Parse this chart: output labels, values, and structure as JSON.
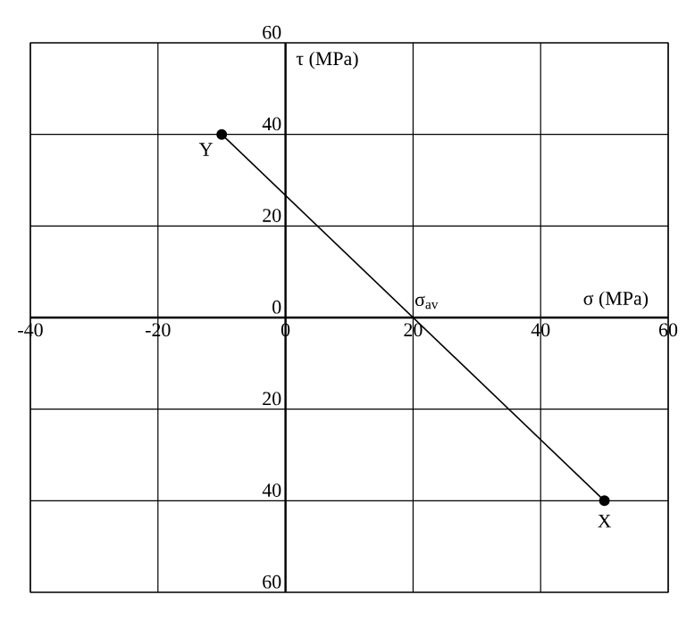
{
  "chart_data": {
    "type": "line",
    "xlabel": "σ (MPa)",
    "ylabel": "τ (MPa)",
    "x": [
      -10,
      50
    ],
    "series": [
      {
        "color": "#000000",
        "values": [
          40,
          -40
        ]
      }
    ],
    "xlim": [
      -40,
      60
    ],
    "ylim": [
      -60,
      60
    ],
    "xticks": [
      -40,
      -20,
      0,
      20,
      40,
      60
    ],
    "yticks": [
      {
        "value": -60,
        "label": "60"
      },
      {
        "value": -40,
        "label": "40"
      },
      {
        "value": -20,
        "label": "20"
      },
      0,
      20,
      40,
      60
    ],
    "grid": true,
    "marker": "circle",
    "line_style": "solid",
    "annotations": [
      {
        "text": "Y",
        "x": -10,
        "y": 40
      },
      {
        "text": "σ$_{av}$",
        "x": 20,
        "y": 0
      },
      {
        "text": "X",
        "x": 50,
        "y": -40
      }
    ]
  }
}
